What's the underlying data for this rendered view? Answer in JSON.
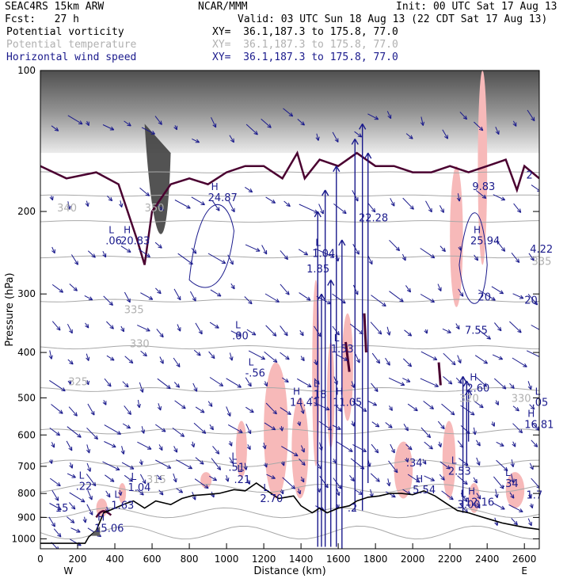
{
  "header": {
    "model": "SEAC4RS 15km ARW",
    "org": "NCAR/MMM",
    "init": "Init: 00 UTC Sat 17 Aug 13",
    "fcst": "Fcst:   27 h",
    "valid": "Valid: 03 UTC Sun 18 Aug 13 (22 CDT Sat 17 Aug 13)",
    "fields": [
      {
        "name": "Potential vorticity",
        "xy": "XY=  36.1,187.3 to 175.8, 77.0",
        "color": "#000000"
      },
      {
        "name": "Potential temperature",
        "xy": "XY=  36.1,187.3 to 175.8, 77.0",
        "color": "#b0b0b0"
      },
      {
        "name": "Horizontal wind speed",
        "xy": "XY=  36.1,187.3 to 175.8, 77.0",
        "color": "#1a1a8c"
      }
    ]
  },
  "colors": {
    "pv": "#4a0030",
    "theta": "#a8a8a8",
    "wind": "#1a1a8c",
    "pink": "#f7b9b9",
    "terrain": "#000000"
  },
  "chart_data": {
    "type": "cross-section",
    "xlabel": "Distance (km)",
    "ylabel": "Pressure (hPa)",
    "xlim": [
      0,
      2680
    ],
    "ylim": [
      1050,
      100
    ],
    "x_ticks": [
      "0",
      "200",
      "400",
      "600",
      "800",
      "1000",
      "1200",
      "1400",
      "1600",
      "1800",
      "2000",
      "2200",
      "2400",
      "2600"
    ],
    "y_ticks": [
      "100",
      "200",
      "300",
      "400",
      "500",
      "600",
      "700",
      "800",
      "900",
      "1000"
    ],
    "x_end_labels": [
      "W",
      "E"
    ],
    "terrain": [
      [
        0,
        1022
      ],
      [
        240,
        1022
      ],
      [
        260,
        990
      ],
      [
        300,
        960
      ],
      [
        340,
        880
      ],
      [
        400,
        860
      ],
      [
        460,
        840
      ],
      [
        500,
        830
      ],
      [
        560,
        860
      ],
      [
        620,
        830
      ],
      [
        700,
        845
      ],
      [
        760,
        820
      ],
      [
        820,
        808
      ],
      [
        880,
        805
      ],
      [
        960,
        800
      ],
      [
        1040,
        785
      ],
      [
        1100,
        790
      ],
      [
        1160,
        760
      ],
      [
        1220,
        790
      ],
      [
        1280,
        820
      ],
      [
        1360,
        810
      ],
      [
        1400,
        850
      ],
      [
        1460,
        880
      ],
      [
        1500,
        860
      ],
      [
        1540,
        880
      ],
      [
        1600,
        860
      ],
      [
        1660,
        850
      ],
      [
        1700,
        830
      ],
      [
        1760,
        815
      ],
      [
        1820,
        810
      ],
      [
        1880,
        800
      ],
      [
        1940,
        800
      ],
      [
        2000,
        805
      ],
      [
        2060,
        790
      ],
      [
        2120,
        810
      ],
      [
        2180,
        840
      ],
      [
        2240,
        870
      ],
      [
        2300,
        880
      ],
      [
        2360,
        895
      ],
      [
        2420,
        910
      ],
      [
        2480,
        925
      ],
      [
        2540,
        935
      ],
      [
        2600,
        945
      ],
      [
        2680,
        955
      ]
    ],
    "theta_labels": [
      {
        "x": 450,
        "p": 330,
        "text": "335"
      },
      {
        "x": 150,
        "p": 470,
        "text": "325"
      },
      {
        "x": 480,
        "p": 390,
        "text": "330"
      },
      {
        "x": 560,
        "p": 200,
        "text": "350"
      },
      {
        "x": 570,
        "p": 760,
        "text": "315"
      },
      {
        "x": 2250,
        "p": 510,
        "text": "320"
      },
      {
        "x": 2530,
        "p": 510,
        "text": "330"
      },
      {
        "x": 2640,
        "p": 260,
        "text": "335"
      },
      {
        "x": 90,
        "p": 200,
        "text": "340"
      }
    ],
    "extrema": [
      {
        "x": 290,
        "p": 965,
        "kind": "H",
        "val": "15.06"
      },
      {
        "x": 380,
        "p": 862,
        "kind": "L",
        "val": "1.63"
      },
      {
        "x": 470,
        "p": 790,
        "kind": "L",
        "val": "1.04"
      },
      {
        "x": 190,
        "p": 785,
        "kind": "L",
        "val": ".22"
      },
      {
        "x": 80,
        "p": 875,
        "kind": "",
        "val": "15"
      },
      {
        "x": 1340,
        "p": 520,
        "kind": "H",
        "val": "14.41"
      },
      {
        "x": 1570,
        "p": 520,
        "kind": "H",
        "val": "11.05"
      },
      {
        "x": 1450,
        "p": 500,
        "kind": "L",
        "val": ".18"
      },
      {
        "x": 1560,
        "p": 400,
        "kind": "L",
        "val": "1.53"
      },
      {
        "x": 1460,
        "p": 250,
        "kind": "L",
        "val": "1.04"
      },
      {
        "x": 1430,
        "p": 270,
        "kind": "",
        "val": "1.85"
      },
      {
        "x": 1030,
        "p": 375,
        "kind": "L",
        "val": ".00"
      },
      {
        "x": 1100,
        "p": 450,
        "kind": "L",
        "val": "-.56"
      },
      {
        "x": 1010,
        "p": 715,
        "kind": "L",
        "val": ".51"
      },
      {
        "x": 1040,
        "p": 760,
        "kind": "L",
        "val": ".21"
      },
      {
        "x": 1180,
        "p": 835,
        "kind": "L",
        "val": "2.70"
      },
      {
        "x": 900,
        "p": 190,
        "kind": "H",
        "val": "24.87"
      },
      {
        "x": 430,
        "p": 235,
        "kind": "H",
        "val": "20.83"
      },
      {
        "x": 350,
        "p": 235,
        "kind": "L",
        "val": ".06"
      },
      {
        "x": 1710,
        "p": 210,
        "kind": "",
        "val": "22.28"
      },
      {
        "x": 1965,
        "p": 700,
        "kind": "",
        "val": ".34"
      },
      {
        "x": 2190,
        "p": 730,
        "kind": "L",
        "val": "2.53"
      },
      {
        "x": 2000,
        "p": 800,
        "kind": "H",
        "val": "5.54"
      },
      {
        "x": 2240,
        "p": 860,
        "kind": "L",
        "val": "3.00"
      },
      {
        "x": 2280,
        "p": 850,
        "kind": "H",
        "val": "12.16"
      },
      {
        "x": 2290,
        "p": 485,
        "kind": "H",
        "val": "2.60"
      },
      {
        "x": 2280,
        "p": 365,
        "kind": "",
        "val": "7.55"
      },
      {
        "x": 2310,
        "p": 235,
        "kind": "H",
        "val": "25.94"
      },
      {
        "x": 2600,
        "p": 580,
        "kind": "H",
        "val": "16.81"
      },
      {
        "x": 2480,
        "p": 775,
        "kind": "L",
        "val": ".34"
      },
      {
        "x": 2610,
        "p": 820,
        "kind": "",
        "val": "1.7"
      },
      {
        "x": 2640,
        "p": 520,
        "kind": "L",
        "val": ".05"
      },
      {
        "x": 2320,
        "p": 180,
        "kind": "",
        "val": "9.83"
      },
      {
        "x": 2610,
        "p": 170,
        "kind": "",
        "val": "2"
      },
      {
        "x": 2630,
        "p": 245,
        "kind": "",
        "val": "4.22"
      },
      {
        "x": 2350,
        "p": 310,
        "kind": "",
        "val": "20"
      },
      {
        "x": 2600,
        "p": 315,
        "kind": "",
        "val": "20"
      },
      {
        "x": 1650,
        "p": 875,
        "kind": "",
        "val": ".2"
      }
    ]
  }
}
